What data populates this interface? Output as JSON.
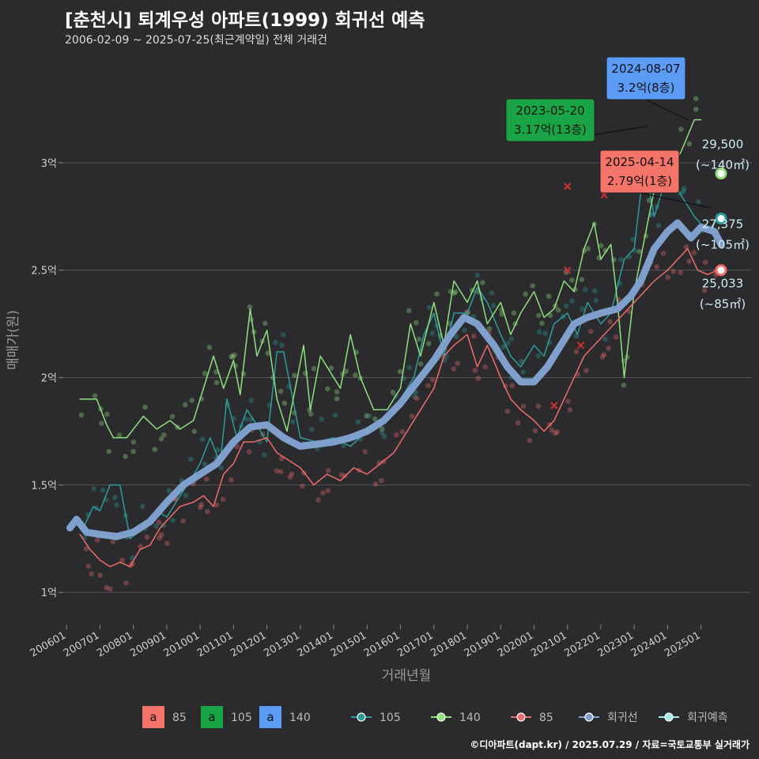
{
  "header": {
    "title": "[춘천시] 퇴계우성 아파트(1999) 회귀선 예측",
    "subtitle": "2006-02-09 ~ 2025-07-25(최근계약일) 전체 거래건",
    "caption": "©디아파트(dapt.kr) / 2025.07.29 / 자료=국토교통부 실거래가"
  },
  "chart_data": {
    "type": "line",
    "xlabel": "거래년월",
    "ylabel": "매매가(원)",
    "x_range": [
      2005.9,
      2026.5
    ],
    "ylim": [
      0.85,
      3.5
    ],
    "x_ticks": [
      {
        "label": "200601",
        "x": 2006.0
      },
      {
        "label": "200701",
        "x": 2007.0
      },
      {
        "label": "200801",
        "x": 2008.0
      },
      {
        "label": "200901",
        "x": 2009.0
      },
      {
        "label": "201001",
        "x": 2010.0
      },
      {
        "label": "201101",
        "x": 2011.0
      },
      {
        "label": "201201",
        "x": 2012.0
      },
      {
        "label": "201301",
        "x": 2013.0
      },
      {
        "label": "201401",
        "x": 2014.0
      },
      {
        "label": "201501",
        "x": 2015.0
      },
      {
        "label": "201601",
        "x": 2016.0
      },
      {
        "label": "201701",
        "x": 2017.0
      },
      {
        "label": "201801",
        "x": 2018.0
      },
      {
        "label": "201901",
        "x": 2019.0
      },
      {
        "label": "202001",
        "x": 2020.0
      },
      {
        "label": "202101",
        "x": 2021.0
      },
      {
        "label": "202201",
        "x": 2022.0
      },
      {
        "label": "202301",
        "x": 2023.0
      },
      {
        "label": "202401",
        "x": 2024.0
      },
      {
        "label": "202501",
        "x": 2025.0
      }
    ],
    "y_ticks": [
      {
        "label": "1억",
        "y": 1.0
      },
      {
        "label": "1.5억",
        "y": 1.5
      },
      {
        "label": "2억",
        "y": 2.0
      },
      {
        "label": "2.5억",
        "y": 2.5
      },
      {
        "label": "3억",
        "y": 3.0
      }
    ],
    "series": [
      {
        "name": "105",
        "color": "#2a9d9a",
        "width": 1.5,
        "points": [
          [
            2006.5,
            1.3
          ],
          [
            2006.8,
            1.4
          ],
          [
            2007.0,
            1.38
          ],
          [
            2007.3,
            1.5
          ],
          [
            2007.6,
            1.5
          ],
          [
            2007.9,
            1.25
          ],
          [
            2008.3,
            1.3
          ],
          [
            2008.7,
            1.38
          ],
          [
            2009.0,
            1.35
          ],
          [
            2009.4,
            1.45
          ],
          [
            2009.7,
            1.52
          ],
          [
            2010.0,
            1.6
          ],
          [
            2010.3,
            1.72
          ],
          [
            2010.6,
            1.6
          ],
          [
            2010.8,
            1.9
          ],
          [
            2011.1,
            1.72
          ],
          [
            2011.4,
            1.85
          ],
          [
            2011.7,
            1.78
          ],
          [
            2012.0,
            1.7
          ],
          [
            2012.3,
            2.12
          ],
          [
            2012.5,
            2.12
          ],
          [
            2013.0,
            1.72
          ],
          [
            2013.5,
            1.7
          ],
          [
            2014.0,
            1.72
          ],
          [
            2014.5,
            1.68
          ],
          [
            2015.0,
            1.75
          ],
          [
            2015.5,
            1.8
          ],
          [
            2016.0,
            1.9
          ],
          [
            2016.4,
            2.0
          ],
          [
            2016.7,
            2.2
          ],
          [
            2017.0,
            2.3
          ],
          [
            2017.3,
            2.1
          ],
          [
            2017.6,
            2.3
          ],
          [
            2018.0,
            2.3
          ],
          [
            2018.3,
            2.42
          ],
          [
            2018.6,
            2.35
          ],
          [
            2019.0,
            2.2
          ],
          [
            2019.3,
            2.1
          ],
          [
            2019.6,
            2.05
          ],
          [
            2020.0,
            2.15
          ],
          [
            2020.3,
            2.1
          ],
          [
            2020.6,
            2.25
          ],
          [
            2021.0,
            2.3
          ],
          [
            2021.3,
            2.2
          ],
          [
            2021.6,
            2.35
          ],
          [
            2022.0,
            2.25
          ],
          [
            2022.3,
            2.3
          ],
          [
            2022.7,
            2.55
          ],
          [
            2023.0,
            2.6
          ],
          [
            2023.3,
            3.0
          ],
          [
            2023.6,
            2.75
          ],
          [
            2024.0,
            2.95
          ],
          [
            2024.4,
            2.85
          ],
          [
            2024.8,
            2.75
          ],
          [
            2025.2,
            2.68
          ],
          [
            2025.5,
            2.74
          ]
        ]
      },
      {
        "name": "140",
        "color": "#8ee07e",
        "width": 1.5,
        "points": [
          [
            2006.4,
            1.9
          ],
          [
            2006.9,
            1.9
          ],
          [
            2007.2,
            1.78
          ],
          [
            2007.4,
            1.72
          ],
          [
            2007.8,
            1.72
          ],
          [
            2008.3,
            1.82
          ],
          [
            2008.7,
            1.76
          ],
          [
            2009.1,
            1.8
          ],
          [
            2009.4,
            1.76
          ],
          [
            2009.8,
            1.8
          ],
          [
            2010.1,
            1.95
          ],
          [
            2010.4,
            2.1
          ],
          [
            2010.7,
            1.95
          ],
          [
            2011.0,
            2.08
          ],
          [
            2011.2,
            1.92
          ],
          [
            2011.5,
            2.32
          ],
          [
            2011.7,
            2.1
          ],
          [
            2012.0,
            2.22
          ],
          [
            2012.3,
            1.9
          ],
          [
            2012.6,
            1.75
          ],
          [
            2013.1,
            2.15
          ],
          [
            2013.3,
            1.85
          ],
          [
            2013.6,
            2.1
          ],
          [
            2014.0,
            2.0
          ],
          [
            2014.2,
            1.95
          ],
          [
            2014.5,
            2.2
          ],
          [
            2014.8,
            2.0
          ],
          [
            2015.2,
            1.85
          ],
          [
            2015.6,
            1.85
          ],
          [
            2016.0,
            1.95
          ],
          [
            2016.3,
            2.25
          ],
          [
            2016.6,
            2.1
          ],
          [
            2017.0,
            2.35
          ],
          [
            2017.3,
            2.15
          ],
          [
            2017.6,
            2.45
          ],
          [
            2018.0,
            2.35
          ],
          [
            2018.3,
            2.45
          ],
          [
            2018.6,
            2.25
          ],
          [
            2019.0,
            2.35
          ],
          [
            2019.3,
            2.2
          ],
          [
            2019.6,
            2.3
          ],
          [
            2020.0,
            2.4
          ],
          [
            2020.3,
            2.28
          ],
          [
            2020.6,
            2.32
          ],
          [
            2020.9,
            2.45
          ],
          [
            2021.2,
            2.4
          ],
          [
            2021.5,
            2.6
          ],
          [
            2021.8,
            2.72
          ],
          [
            2022.0,
            2.55
          ],
          [
            2022.3,
            2.62
          ],
          [
            2022.5,
            2.35
          ],
          [
            2022.7,
            2.0
          ],
          [
            2023.0,
            2.4
          ],
          [
            2023.4,
            2.72
          ],
          [
            2023.7,
            2.95
          ],
          [
            2024.0,
            2.95
          ],
          [
            2024.4,
            3.05
          ],
          [
            2024.8,
            3.2
          ],
          [
            2025.0,
            3.2
          ]
        ]
      },
      {
        "name": "85",
        "color": "#f06b6b",
        "width": 1.5,
        "points": [
          [
            2006.4,
            1.27
          ],
          [
            2006.7,
            1.2
          ],
          [
            2007.0,
            1.15
          ],
          [
            2007.3,
            1.12
          ],
          [
            2007.6,
            1.14
          ],
          [
            2007.9,
            1.12
          ],
          [
            2008.2,
            1.2
          ],
          [
            2008.5,
            1.22
          ],
          [
            2008.8,
            1.3
          ],
          [
            2009.1,
            1.35
          ],
          [
            2009.4,
            1.4
          ],
          [
            2009.8,
            1.42
          ],
          [
            2010.1,
            1.45
          ],
          [
            2010.4,
            1.4
          ],
          [
            2010.7,
            1.55
          ],
          [
            2011.0,
            1.6
          ],
          [
            2011.3,
            1.7
          ],
          [
            2011.6,
            1.7
          ],
          [
            2012.0,
            1.72
          ],
          [
            2012.3,
            1.65
          ],
          [
            2012.6,
            1.62
          ],
          [
            2013.0,
            1.58
          ],
          [
            2013.4,
            1.5
          ],
          [
            2013.8,
            1.55
          ],
          [
            2014.2,
            1.52
          ],
          [
            2014.6,
            1.58
          ],
          [
            2015.0,
            1.55
          ],
          [
            2015.4,
            1.6
          ],
          [
            2015.8,
            1.65
          ],
          [
            2016.2,
            1.75
          ],
          [
            2016.6,
            1.85
          ],
          [
            2017.0,
            1.95
          ],
          [
            2017.3,
            2.1
          ],
          [
            2017.6,
            2.15
          ],
          [
            2018.0,
            2.2
          ],
          [
            2018.3,
            2.05
          ],
          [
            2018.6,
            2.15
          ],
          [
            2019.0,
            2.0
          ],
          [
            2019.3,
            1.9
          ],
          [
            2019.6,
            1.85
          ],
          [
            2020.0,
            1.8
          ],
          [
            2020.3,
            1.75
          ],
          [
            2020.6,
            1.8
          ],
          [
            2020.9,
            1.9
          ],
          [
            2021.2,
            2.0
          ],
          [
            2021.5,
            2.1
          ],
          [
            2021.8,
            2.15
          ],
          [
            2022.1,
            2.2
          ],
          [
            2022.4,
            2.25
          ],
          [
            2022.7,
            2.3
          ],
          [
            2023.0,
            2.35
          ],
          [
            2023.3,
            2.4
          ],
          [
            2023.6,
            2.45
          ],
          [
            2024.0,
            2.5
          ],
          [
            2024.3,
            2.55
          ],
          [
            2024.6,
            2.6
          ],
          [
            2024.9,
            2.5
          ],
          [
            2025.2,
            2.48
          ],
          [
            2025.5,
            2.5
          ]
        ]
      },
      {
        "name": "회귀선",
        "color": "#7f9fcc",
        "width": 9,
        "points": [
          [
            2006.1,
            1.3
          ],
          [
            2006.3,
            1.34
          ],
          [
            2006.6,
            1.28
          ],
          [
            2007.0,
            1.27
          ],
          [
            2007.5,
            1.26
          ],
          [
            2008.0,
            1.28
          ],
          [
            2008.5,
            1.33
          ],
          [
            2009.0,
            1.42
          ],
          [
            2009.5,
            1.5
          ],
          [
            2010.0,
            1.55
          ],
          [
            2010.5,
            1.6
          ],
          [
            2011.0,
            1.7
          ],
          [
            2011.5,
            1.77
          ],
          [
            2012.0,
            1.78
          ],
          [
            2012.5,
            1.72
          ],
          [
            2013.0,
            1.68
          ],
          [
            2013.5,
            1.69
          ],
          [
            2014.0,
            1.7
          ],
          [
            2014.5,
            1.72
          ],
          [
            2015.0,
            1.75
          ],
          [
            2015.5,
            1.8
          ],
          [
            2016.0,
            1.88
          ],
          [
            2016.5,
            1.98
          ],
          [
            2017.0,
            2.08
          ],
          [
            2017.5,
            2.2
          ],
          [
            2017.9,
            2.28
          ],
          [
            2018.3,
            2.25
          ],
          [
            2018.8,
            2.15
          ],
          [
            2019.2,
            2.05
          ],
          [
            2019.6,
            1.98
          ],
          [
            2020.0,
            1.98
          ],
          [
            2020.4,
            2.05
          ],
          [
            2020.8,
            2.15
          ],
          [
            2021.2,
            2.25
          ],
          [
            2021.6,
            2.28
          ],
          [
            2022.0,
            2.3
          ],
          [
            2022.5,
            2.32
          ],
          [
            2022.9,
            2.38
          ],
          [
            2023.2,
            2.45
          ],
          [
            2023.6,
            2.6
          ],
          [
            2024.0,
            2.68
          ],
          [
            2024.3,
            2.72
          ],
          [
            2024.7,
            2.65
          ],
          [
            2025.0,
            2.7
          ],
          [
            2025.4,
            2.68
          ],
          [
            2025.6,
            2.62
          ]
        ]
      }
    ],
    "end_points": [
      {
        "name": "140",
        "x": 2025.6,
        "y": 2.95,
        "color": "#8ee07e"
      },
      {
        "name": "105",
        "x": 2025.6,
        "y": 2.74,
        "color": "#2a9d9a"
      },
      {
        "name": "85",
        "x": 2025.6,
        "y": 2.5,
        "color": "#f06b6b"
      }
    ],
    "end_labels": [
      {
        "line1": "29,500",
        "line2": "(~140㎡)",
        "y": 2.95
      },
      {
        "line1": "27,375",
        "line2": "(~105㎡)",
        "y": 2.74
      },
      {
        "line1": "25,033",
        "line2": "(~85㎡)",
        "y": 2.5
      }
    ],
    "callouts": [
      {
        "date": "2024-08-07",
        "value": "3.2억(8층)",
        "color": "#5b9bf5",
        "x": 2024.6,
        "y": 3.2
      },
      {
        "date": "2023-05-20",
        "value": "3.17억(13층)",
        "color": "#19a546",
        "x": 2023.4,
        "y": 3.17
      },
      {
        "date": "2025-04-14",
        "value": "2.79억(1층)",
        "color": "#f4746a",
        "x": 2025.3,
        "y": 2.79
      }
    ],
    "markers_x": [
      {
        "x": 2021.0,
        "y": 2.5,
        "color": "#d03030"
      },
      {
        "x": 2022.1,
        "y": 2.85,
        "color": "#d03030"
      },
      {
        "x": 2020.6,
        "y": 1.87,
        "color": "#d03030"
      },
      {
        "x": 2021.4,
        "y": 2.15,
        "color": "#d03030"
      },
      {
        "x": 2021.0,
        "y": 2.89,
        "color": "#d03030"
      }
    ],
    "legend_areas": [
      "85",
      "105",
      "140"
    ],
    "legend_area_colors": [
      "#f4746a",
      "#19a546",
      "#5b9bf5"
    ],
    "legend_lines": [
      {
        "name": "105",
        "color": "#2a9d9a"
      },
      {
        "name": "140",
        "color": "#8ee07e"
      },
      {
        "name": "85",
        "color": "#f06b6b"
      },
      {
        "name": "회귀선",
        "color": "#7f9fcc"
      },
      {
        "name": "회귀예측",
        "color": "#a8e8e8"
      }
    ],
    "legend_marker_char": "a"
  }
}
